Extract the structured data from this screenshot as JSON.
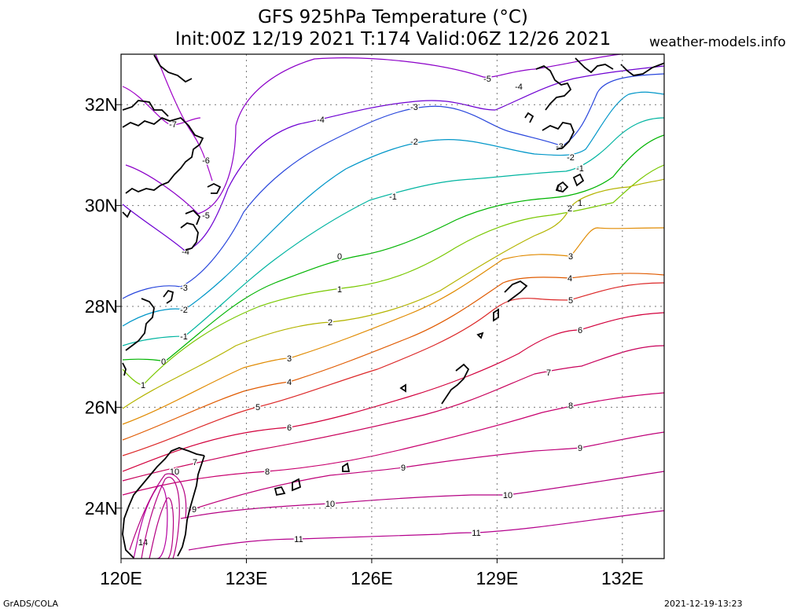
{
  "title_line1": "GFS 925hPa Temperature (°C)",
  "title_line2": "Init:00Z 12/19 2021 T:174 Valid:06Z 12/26 2021",
  "site": "weather-models.info",
  "credit": "GrADS/COLA",
  "timestamp": "2021-12-19-13:23",
  "map": {
    "lon_range": [
      120,
      133
    ],
    "lat_range": [
      23,
      33
    ],
    "lon_ticks": [
      {
        "value": 120,
        "label": "120E"
      },
      {
        "value": 123,
        "label": "123E"
      },
      {
        "value": 126,
        "label": "126E"
      },
      {
        "value": 129,
        "label": "129E"
      },
      {
        "value": 132,
        "label": "132E"
      }
    ],
    "lat_ticks": [
      {
        "value": 24,
        "label": "24N"
      },
      {
        "value": 26,
        "label": "26N"
      },
      {
        "value": 28,
        "label": "28N"
      },
      {
        "value": 30,
        "label": "30N"
      },
      {
        "value": 32,
        "label": "32N"
      }
    ],
    "grid": "dotted",
    "contour_labels": [
      "-7",
      "-6",
      "-5",
      "-4",
      "-3",
      "-2",
      "-1",
      "0",
      "1",
      "2",
      "3",
      "4",
      "5",
      "6",
      "7",
      "8",
      "9",
      "10",
      "11",
      "14"
    ]
  },
  "colors": {
    "-7": "#a000c8",
    "-6": "#a000c8",
    "-5": "#8c00c8",
    "-4": "#6e00d2",
    "-3": "#2846dc",
    "-2": "#0096c8",
    "-1": "#00b4a0",
    "0": "#00b400",
    "1": "#78c800",
    "2": "#b4b400",
    "3": "#e08a00",
    "4": "#e05a00",
    "5": "#dc2828",
    "6": "#d2003c",
    "7": "#c8005a",
    "8": "#c8006e",
    "9": "#be0078",
    "10": "#b40082",
    "11": "#b4008c",
    "14": "#b400a0"
  }
}
